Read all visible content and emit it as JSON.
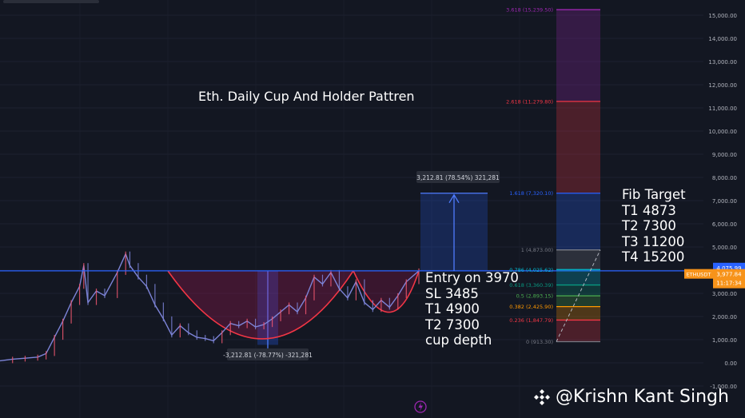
{
  "chart_data": {
    "type": "line",
    "symbol": "ETHUSDT",
    "ylim": [
      -1300,
      15500
    ],
    "y_ticks": [
      15000,
      14000,
      13000,
      12000,
      11000,
      10000,
      9000,
      8000,
      7000,
      6000,
      5000,
      4000,
      3000,
      2000,
      1000,
      0,
      -1000
    ],
    "y_tick_labels": [
      "15,000.00",
      "14,000.00",
      "13,000.00",
      "12,000.00",
      "11,000.00",
      "10,000.00",
      "9,000.00",
      "8,000.00",
      "7,000.00",
      "6,000.00",
      "5,000.00",
      "4,000.00",
      "3,000.00",
      "2,000.00",
      "1,000.00",
      "0.00",
      "-1,000.00"
    ],
    "price_path": [
      [
        0,
        90
      ],
      [
        0.03,
        160
      ],
      [
        0.06,
        200
      ],
      [
        0.09,
        250
      ],
      [
        0.11,
        400
      ],
      [
        0.13,
        1100
      ],
      [
        0.15,
        1800
      ],
      [
        0.17,
        2600
      ],
      [
        0.19,
        3300
      ],
      [
        0.2,
        4200
      ],
      [
        0.21,
        2600
      ],
      [
        0.23,
        3100
      ],
      [
        0.25,
        2900
      ],
      [
        0.28,
        3900
      ],
      [
        0.3,
        4700
      ],
      [
        0.31,
        4200
      ],
      [
        0.33,
        3700
      ],
      [
        0.35,
        3300
      ],
      [
        0.37,
        2500
      ],
      [
        0.39,
        1900
      ],
      [
        0.41,
        1200
      ],
      [
        0.43,
        1600
      ],
      [
        0.45,
        1300
      ],
      [
        0.47,
        1100
      ],
      [
        0.49,
        1050
      ],
      [
        0.51,
        950
      ],
      [
        0.53,
        1300
      ],
      [
        0.55,
        1700
      ],
      [
        0.57,
        1600
      ],
      [
        0.59,
        1800
      ],
      [
        0.61,
        1550
      ],
      [
        0.63,
        1650
      ],
      [
        0.65,
        1900
      ],
      [
        0.67,
        2200
      ],
      [
        0.69,
        2500
      ],
      [
        0.71,
        2200
      ],
      [
        0.73,
        2800
      ],
      [
        0.75,
        3700
      ],
      [
        0.77,
        3400
      ],
      [
        0.79,
        3900
      ],
      [
        0.81,
        3200
      ],
      [
        0.83,
        2800
      ],
      [
        0.85,
        3500
      ],
      [
        0.87,
        2600
      ],
      [
        0.89,
        2300
      ],
      [
        0.91,
        2700
      ],
      [
        0.93,
        2400
      ],
      [
        0.95,
        2900
      ],
      [
        0.97,
        3500
      ],
      [
        1.0,
        3970
      ]
    ],
    "horizontal_line": 3970,
    "fib_levels": [
      {
        "ratio": "0",
        "label": "0 (913.30)",
        "value": 913.3,
        "color": "#787b86"
      },
      {
        "ratio": "0.236",
        "label": "0.236 (1,847.79)",
        "value": 1847.79,
        "color": "#f23645"
      },
      {
        "ratio": "0.382",
        "label": "0.382 (2,425.90)",
        "value": 2425.9,
        "color": "#ff9800"
      },
      {
        "ratio": "0.5",
        "label": "0.5 (2,893.15)",
        "value": 2893.15,
        "color": "#4caf50"
      },
      {
        "ratio": "0.618",
        "label": "0.618 (3,360.39)",
        "value": 3360.39,
        "color": "#089981"
      },
      {
        "ratio": "0.786",
        "label": "0.786 (4,025.62)",
        "value": 4025.62,
        "color": "#00bcd4"
      },
      {
        "ratio": "1",
        "label": "1 (4,873.00)",
        "value": 4873.0,
        "color": "#787b86"
      },
      {
        "ratio": "1.618",
        "label": "1.618 (7,320.10)",
        "value": 7320.1,
        "color": "#2962ff"
      },
      {
        "ratio": "2.618",
        "label": "2.618 (11,279.80)",
        "value": 11279.8,
        "color": "#f23645"
      },
      {
        "ratio": "3.618",
        "label": "3.618 (15,239.50)",
        "value": 15239.5,
        "color": "#9c27b0"
      }
    ],
    "measure_down_label": "-3,212.81 (-78.77%) -321,281",
    "measure_up_label": "3,212.81 (78.54%) 321,281",
    "price_badges": [
      {
        "text": "4,075.99",
        "value": 4075.99,
        "color": "#2962ff"
      },
      {
        "text": "ETHUSDT",
        "value": 3977.84,
        "color": "#f7931a"
      },
      {
        "text": "3,977.84",
        "value": 3977.84,
        "color": "#f7931a"
      },
      {
        "text": "11:17:34",
        "value": 3977.84,
        "color": "#f7931a"
      }
    ]
  },
  "annotations": {
    "title": "Eth. Daily Cup And Holder Pattren",
    "trade_lines": [
      "Entry on 3970",
      "SL 3485",
      "T1 4900",
      "T2 7300",
      "cup depth"
    ],
    "fib_target_lines": [
      "Fib Target",
      "T1 4873",
      "T2 7300",
      "T3 11200",
      "T4 15200"
    ]
  },
  "watermark": {
    "text": "@Krishn Kant Singh"
  },
  "colors": {
    "background": "#131722",
    "axis_text": "#b2b5be",
    "price_line": "#7d84d8",
    "price_up": "#f05770",
    "cup": "#f23645",
    "cup_fill": "#c2185b",
    "blue_line": "#2962ff",
    "measure_fill": "#2962ff"
  }
}
